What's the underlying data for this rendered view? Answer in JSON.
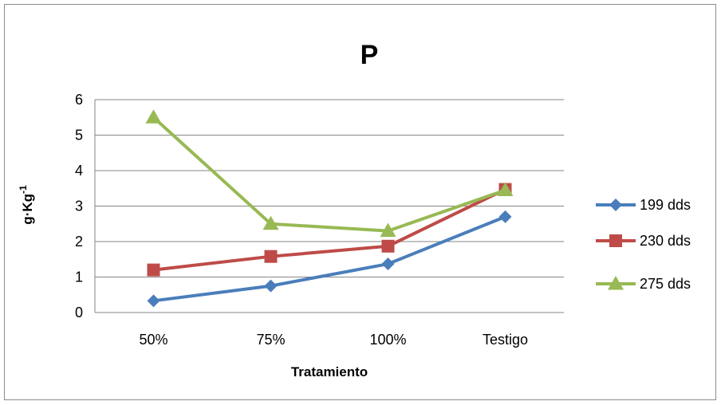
{
  "chart_data": {
    "type": "line",
    "title": "P",
    "xlabel": "Tratamiento",
    "ylabel_main": "g·Kg",
    "ylabel_sup": "-1",
    "categories": [
      "50%",
      "75%",
      "100%",
      "Testigo"
    ],
    "ylim": [
      0,
      6
    ],
    "yticks": [
      "0",
      "1",
      "2",
      "3",
      "4",
      "5",
      "6"
    ],
    "grid": true,
    "legend_position": "right",
    "series": [
      {
        "name": "199 dds",
        "values": [
          0.33,
          0.75,
          1.37,
          2.7
        ],
        "color": "#4a7ebb",
        "marker": "diamond"
      },
      {
        "name": "230 dds",
        "values": [
          1.2,
          1.58,
          1.87,
          3.47
        ],
        "color": "#be4b48",
        "marker": "square"
      },
      {
        "name": "275 dds",
        "values": [
          5.5,
          2.5,
          2.3,
          3.45
        ],
        "color": "#98b954",
        "marker": "triangle"
      }
    ]
  }
}
